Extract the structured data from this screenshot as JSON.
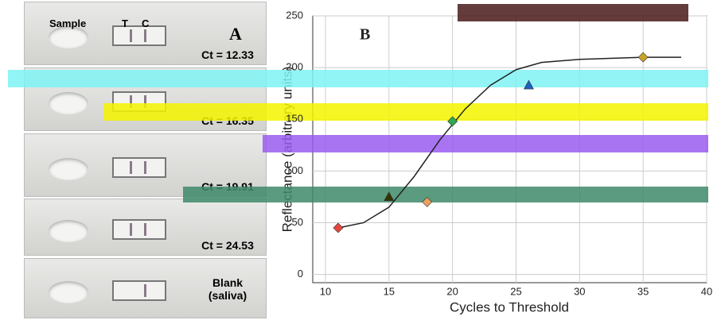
{
  "panel_a": {
    "label": "A",
    "header": {
      "sample": "Sample",
      "t": "T",
      "c": "C"
    },
    "strips": [
      "Ct = 12.33",
      "Ct = 16.35",
      "Ct = 19.91",
      "Ct = 24.53",
      "Blank (saliva)"
    ]
  },
  "chart_data": {
    "type": "scatter",
    "panel_label": "B",
    "x_label": "Cycles to Threshold",
    "y_label": "Reflectance (arbitrary units)",
    "xlim": [
      9,
      40
    ],
    "xticks": [
      10,
      15,
      20,
      25,
      30,
      35,
      40
    ],
    "ylim": [
      -8,
      250
    ],
    "yticks": [
      0,
      50,
      100,
      150,
      200,
      250
    ],
    "grid": true,
    "curve": {
      "color": "#222222",
      "x": [
        11,
        13,
        15,
        17,
        19,
        21,
        23,
        25,
        27,
        30,
        35,
        38
      ],
      "y": [
        45,
        50,
        65,
        95,
        130,
        160,
        183,
        198,
        205,
        208,
        210,
        210
      ]
    },
    "series": [
      {
        "color": "#e8463c",
        "marker": "diamond",
        "x": [
          11
        ],
        "values": [
          45
        ]
      },
      {
        "color": "#333300",
        "marker": "triangle",
        "x": [
          15
        ],
        "values": [
          75
        ]
      },
      {
        "color": "#e8a060",
        "marker": "diamond",
        "x": [
          18
        ],
        "values": [
          70
        ]
      },
      {
        "color": "#2fa84f",
        "marker": "diamond",
        "x": [
          20
        ],
        "values": [
          148
        ]
      },
      {
        "color": "#1f5fbf",
        "marker": "triangle",
        "x": [
          26
        ],
        "values": [
          183
        ]
      },
      {
        "color": "#c9a227",
        "marker": "diamond",
        "x": [
          35
        ],
        "values": [
          210
        ]
      }
    ]
  }
}
